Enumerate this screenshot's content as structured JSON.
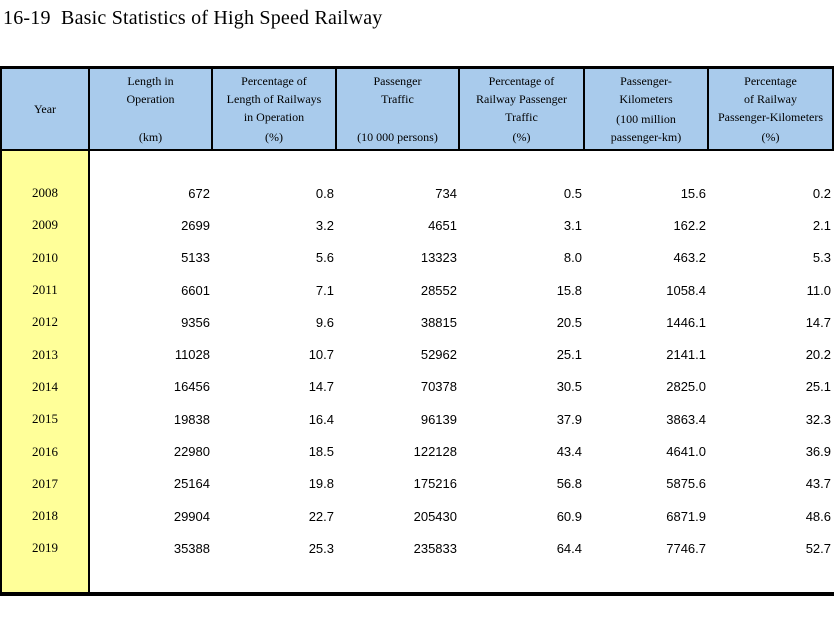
{
  "title": "16-19  Basic Statistics of High Speed Railway",
  "colors": {
    "header_bg": "#A9CBEC",
    "year_column_bg": "#FFFF99",
    "border": "#000000",
    "page_bg": "#FFFFFF"
  },
  "table": {
    "columns": [
      {
        "label": "Year",
        "unit": ""
      },
      {
        "label": "Length in\nOperation",
        "unit": "(km)"
      },
      {
        "label": "Percentage of\nLength of Railways\nin Operation",
        "unit": "(%)"
      },
      {
        "label": "Passenger\nTraffic",
        "unit": "(10 000 persons)"
      },
      {
        "label": "Percentage of\nRailway Passenger\nTraffic",
        "unit": "(%)"
      },
      {
        "label": "Passenger-\nKilometers",
        "unit": "(100 million\npassenger-km)"
      },
      {
        "label": "Percentage\nof Railway\nPassenger-Kilometers",
        "unit": "(%)"
      }
    ],
    "rows": [
      [
        "2008",
        "672",
        "0.8",
        "734",
        "0.5",
        "15.6",
        "0.2"
      ],
      [
        "2009",
        "2699",
        "3.2",
        "4651",
        "3.1",
        "162.2",
        "2.1"
      ],
      [
        "2010",
        "5133",
        "5.6",
        "13323",
        "8.0",
        "463.2",
        "5.3"
      ],
      [
        "2011",
        "6601",
        "7.1",
        "28552",
        "15.8",
        "1058.4",
        "11.0"
      ],
      [
        "2012",
        "9356",
        "9.6",
        "38815",
        "20.5",
        "1446.1",
        "14.7"
      ],
      [
        "2013",
        "11028",
        "10.7",
        "52962",
        "25.1",
        "2141.1",
        "20.2"
      ],
      [
        "2014",
        "16456",
        "14.7",
        "70378",
        "30.5",
        "2825.0",
        "25.1"
      ],
      [
        "2015",
        "19838",
        "16.4",
        "96139",
        "37.9",
        "3863.4",
        "32.3"
      ],
      [
        "2016",
        "22980",
        "18.5",
        "122128",
        "43.4",
        "4641.0",
        "36.9"
      ],
      [
        "2017",
        "25164",
        "19.8",
        "175216",
        "56.8",
        "5875.6",
        "43.7"
      ],
      [
        "2018",
        "29904",
        "22.7",
        "205430",
        "60.9",
        "6871.9",
        "48.6"
      ],
      [
        "2019",
        "35388",
        "25.3",
        "235833",
        "64.4",
        "7746.7",
        "52.7"
      ]
    ]
  }
}
